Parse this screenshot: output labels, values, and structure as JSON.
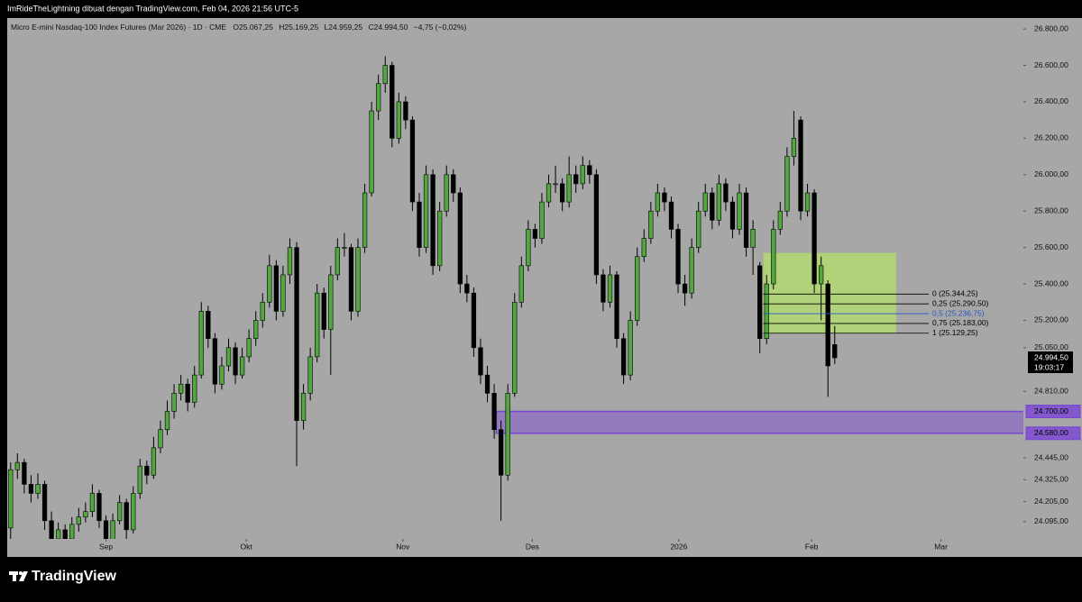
{
  "header": "ImRideTheLightning dibuat dengan TradingView.com, Feb 04, 2026 21:56 UTC-5",
  "chart_data": {
    "type": "candlestick",
    "legend": {
      "symbol": "Micro E-mini Nasdaq-100 Index Futures (Mar 2026) · 1D · CME",
      "ohlc": [
        "O25.067,25",
        "H25.169,25",
        "L24.959,25",
        "C24.994,50"
      ],
      "change": "−4,75 (−0,02%)"
    },
    "up_color": "#52a83f",
    "down_color": "#000000",
    "xlim": [
      -0.5,
      148.7
    ],
    "ylim": [
      24000,
      26860
    ],
    "xticks": [
      {
        "value": 14,
        "label": "Sep"
      },
      {
        "value": 34.6,
        "label": "Okt"
      },
      {
        "value": 57.6,
        "label": "Nov"
      },
      {
        "value": 76.6,
        "label": "Des"
      },
      {
        "value": 98.1,
        "label": "2026"
      },
      {
        "value": 117.6,
        "label": "Feb"
      },
      {
        "value": 136.6,
        "label": "Mar"
      }
    ],
    "yticks": [
      {
        "value": 26800,
        "label": "26.800,00"
      },
      {
        "value": 26600,
        "label": "26.600,00"
      },
      {
        "value": 26400,
        "label": "26.400,00"
      },
      {
        "value": 26200,
        "label": "26.200,00"
      },
      {
        "value": 26000,
        "label": "26.000,00"
      },
      {
        "value": 25800,
        "label": "25.800,00"
      },
      {
        "value": 25600,
        "label": "25.600,00"
      },
      {
        "value": 25400,
        "label": "25.400,00"
      },
      {
        "value": 25200,
        "label": "25.200,00"
      },
      {
        "value": 25050,
        "label": "25.050,00"
      },
      {
        "value": 24810,
        "label": "24.810,00"
      },
      {
        "value": 24445,
        "label": "24.445,00"
      },
      {
        "value": 24325,
        "label": "24.325,00"
      },
      {
        "value": 24205,
        "label": "24.205,00"
      },
      {
        "value": 24095,
        "label": "24.095,00"
      }
    ],
    "candles": [
      [
        24060,
        24420,
        24000,
        24380
      ],
      [
        24380,
        24470,
        24330,
        24420
      ],
      [
        24420,
        24440,
        24250,
        24300
      ],
      [
        24300,
        24350,
        24200,
        24250
      ],
      [
        24250,
        24360,
        24220,
        24300
      ],
      [
        24300,
        24320,
        24050,
        24100
      ],
      [
        24100,
        24150,
        23960,
        24000
      ],
      [
        24000,
        24090,
        23970,
        24050
      ],
      [
        24050,
        24080,
        23980,
        24000
      ],
      [
        24000,
        24120,
        23980,
        24080
      ],
      [
        24080,
        24170,
        24040,
        24120
      ],
      [
        24120,
        24200,
        24090,
        24150
      ],
      [
        24150,
        24300,
        24120,
        24250
      ],
      [
        24250,
        24270,
        24060,
        24100
      ],
      [
        24100,
        24130,
        23975,
        23990
      ],
      [
        23990,
        24140,
        23980,
        24100
      ],
      [
        24100,
        24240,
        24080,
        24200
      ],
      [
        24200,
        24220,
        24000,
        24050
      ],
      [
        24050,
        24290,
        24030,
        24250
      ],
      [
        24250,
        24440,
        24220,
        24400
      ],
      [
        24400,
        24430,
        24300,
        24350
      ],
      [
        24350,
        24560,
        24330,
        24500
      ],
      [
        24500,
        24650,
        24470,
        24600
      ],
      [
        24600,
        24760,
        24570,
        24700
      ],
      [
        24700,
        24850,
        24660,
        24800
      ],
      [
        24800,
        24900,
        24760,
        24850
      ],
      [
        24850,
        24880,
        24700,
        24750
      ],
      [
        24750,
        24950,
        24720,
        24900
      ],
      [
        24900,
        25300,
        24880,
        25250
      ],
      [
        25250,
        25280,
        25050,
        25100
      ],
      [
        25100,
        25130,
        24800,
        24850
      ],
      [
        24850,
        25000,
        24820,
        24950
      ],
      [
        24950,
        25100,
        24920,
        25050
      ],
      [
        25050,
        25080,
        24850,
        24900
      ],
      [
        24900,
        25050,
        24880,
        25000
      ],
      [
        25000,
        25150,
        24970,
        25100
      ],
      [
        25100,
        25250,
        25060,
        25200
      ],
      [
        25200,
        25350,
        25160,
        25300
      ],
      [
        25300,
        25560,
        25270,
        25500
      ],
      [
        25500,
        25530,
        25200,
        25250
      ],
      [
        25250,
        25500,
        25220,
        25450
      ],
      [
        25450,
        25650,
        25400,
        25600
      ],
      [
        25600,
        25630,
        24400,
        24650
      ],
      [
        24650,
        24850,
        24600,
        24800
      ],
      [
        24800,
        25050,
        24760,
        25000
      ],
      [
        25000,
        25400,
        24970,
        25350
      ],
      [
        25350,
        25380,
        25100,
        25150
      ],
      [
        25150,
        25500,
        24900,
        25450
      ],
      [
        25450,
        25650,
        25420,
        25600
      ],
      [
        25600,
        25680,
        25550,
        25600
      ],
      [
        25600,
        25620,
        25200,
        25250
      ],
      [
        25250,
        25650,
        25220,
        25600
      ],
      [
        25600,
        25950,
        25570,
        25900
      ],
      [
        25900,
        26400,
        25880,
        26350
      ],
      [
        26350,
        26550,
        26300,
        26500
      ],
      [
        26500,
        26650,
        26450,
        26600
      ],
      [
        26600,
        26620,
        26150,
        26200
      ],
      [
        26200,
        26450,
        26170,
        26400
      ],
      [
        26400,
        26430,
        26250,
        26300
      ],
      [
        26300,
        26320,
        25800,
        25850
      ],
      [
        25850,
        25900,
        25550,
        25600
      ],
      [
        25600,
        26050,
        25570,
        26000
      ],
      [
        26000,
        26030,
        25450,
        25500
      ],
      [
        25500,
        25850,
        25470,
        25800
      ],
      [
        25800,
        26050,
        25770,
        26000
      ],
      [
        26000,
        26030,
        25850,
        25900
      ],
      [
        25900,
        25930,
        25350,
        25400
      ],
      [
        25400,
        25450,
        25300,
        25350
      ],
      [
        25350,
        25380,
        25000,
        25050
      ],
      [
        25050,
        25100,
        24850,
        24900
      ],
      [
        24900,
        24950,
        24750,
        24800
      ],
      [
        24800,
        24850,
        24550,
        24600
      ],
      [
        24600,
        24650,
        24100,
        24350
      ],
      [
        24350,
        24850,
        24320,
        24800
      ],
      [
        24800,
        25350,
        24780,
        25300
      ],
      [
        25300,
        25550,
        25270,
        25500
      ],
      [
        25500,
        25750,
        25470,
        25700
      ],
      [
        25700,
        25730,
        25600,
        25650
      ],
      [
        25650,
        25900,
        25620,
        25850
      ],
      [
        25850,
        26000,
        25820,
        25950
      ],
      [
        25950,
        26050,
        25900,
        25950
      ],
      [
        25950,
        25980,
        25800,
        25850
      ],
      [
        25850,
        26100,
        25820,
        26000
      ],
      [
        26000,
        26050,
        25900,
        25950
      ],
      [
        25950,
        26100,
        25920,
        26050
      ],
      [
        26050,
        26080,
        25950,
        26000
      ],
      [
        26000,
        26030,
        25400,
        25450
      ],
      [
        25450,
        25480,
        25250,
        25300
      ],
      [
        25300,
        25500,
        25270,
        25450
      ],
      [
        25450,
        25470,
        25050,
        25100
      ],
      [
        25100,
        25130,
        24850,
        24900
      ],
      [
        24900,
        25250,
        24870,
        25200
      ],
      [
        25200,
        25600,
        25170,
        25550
      ],
      [
        25550,
        25700,
        25520,
        25650
      ],
      [
        25650,
        25850,
        25620,
        25800
      ],
      [
        25800,
        25950,
        25770,
        25900
      ],
      [
        25900,
        25930,
        25800,
        25850
      ],
      [
        25850,
        25880,
        25650,
        25700
      ],
      [
        25700,
        25730,
        25350,
        25400
      ],
      [
        25400,
        25450,
        25280,
        25350
      ],
      [
        25350,
        25650,
        25320,
        25600
      ],
      [
        25600,
        25850,
        25570,
        25800
      ],
      [
        25800,
        25950,
        25770,
        25900
      ],
      [
        25900,
        25930,
        25700,
        25750
      ],
      [
        25750,
        26000,
        25720,
        25950
      ],
      [
        25950,
        25980,
        25800,
        25850
      ],
      [
        25850,
        25880,
        25650,
        25700
      ],
      [
        25700,
        25950,
        25670,
        25900
      ],
      [
        25900,
        25930,
        25550,
        25600
      ],
      [
        25600,
        25750,
        25450,
        25700
      ],
      [
        25500,
        25520,
        25020,
        25100
      ],
      [
        25100,
        25450,
        25070,
        25400
      ],
      [
        25400,
        25750,
        25370,
        25700
      ],
      [
        25700,
        25850,
        25670,
        25800
      ],
      [
        25800,
        26150,
        25770,
        26100
      ],
      [
        26100,
        26350,
        26050,
        26200
      ],
      [
        26300,
        26320,
        25750,
        25800
      ],
      [
        25800,
        25950,
        25770,
        25900
      ],
      [
        25900,
        25920,
        25350,
        25400
      ],
      [
        25400,
        25550,
        25200,
        25500
      ],
      [
        25400,
        25420,
        24780,
        24950
      ],
      [
        25067.25,
        25169.25,
        24959.25,
        24994.5
      ]
    ],
    "box": {
      "x": [
        110.5,
        130
      ],
      "y": [
        25129.25,
        25570
      ],
      "color": "#b4e06a"
    },
    "fib": {
      "x": [
        110.5,
        134.8
      ],
      "levels": [
        {
          "value": 25344.25,
          "label": "0 (25.344,25)",
          "color": "#000000"
        },
        {
          "value": 25290.5,
          "label": "0,25 (25.290,50)",
          "color": "#000000"
        },
        {
          "value": 25236.75,
          "label": "0,5 (25.236,75)",
          "color": "#2a56c6"
        },
        {
          "value": 25183,
          "label": "0,75 (25.183,00)",
          "color": "#000000"
        },
        {
          "value": 25129.25,
          "label": "1 (25.129,25)",
          "color": "#000000"
        }
      ]
    },
    "zone": {
      "x_start": 71.3,
      "top": {
        "value": 24700,
        "label": "24.700,00"
      },
      "bottom": {
        "value": 24580,
        "label": "24.580,00"
      },
      "color": "#7a45d6"
    },
    "last_price": {
      "value": 24994.5,
      "label": "24.994,50",
      "countdown": "19:03:17"
    }
  },
  "brand": "TradingView"
}
